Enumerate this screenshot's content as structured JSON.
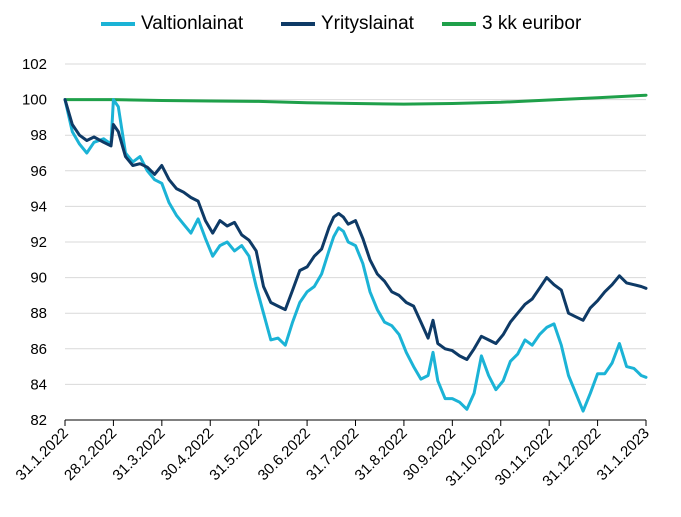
{
  "chart_data": {
    "type": "line",
    "title": "",
    "xlabel": "",
    "ylabel": "",
    "ylim": [
      82,
      102
    ],
    "y_ticks": [
      "82",
      "84",
      "86",
      "88",
      "90",
      "92",
      "94",
      "96",
      "98",
      "100",
      "102"
    ],
    "x_ticks": [
      "31.1.2022",
      "28.2.2022",
      "31.3.2022",
      "30.4.2022",
      "31.5.2022",
      "30.6.2022",
      "31.7.2022",
      "31.8.2022",
      "30.9.2022",
      "31.10.2022",
      "30.11.2022",
      "31.12.2022",
      "31.1.2023"
    ],
    "grid": "horizontal",
    "legend_position": "top",
    "series": [
      {
        "name": "Valtionlainat",
        "color": "#1BB3D6",
        "values": [
          [
            0,
            100
          ],
          [
            0.15,
            98.2
          ],
          [
            0.3,
            97.5
          ],
          [
            0.45,
            97.0
          ],
          [
            0.6,
            97.6
          ],
          [
            0.8,
            97.8
          ],
          [
            0.95,
            97.5
          ],
          [
            1.0,
            100.0
          ],
          [
            1.1,
            99.6
          ],
          [
            1.25,
            97.0
          ],
          [
            1.4,
            96.5
          ],
          [
            1.55,
            96.8
          ],
          [
            1.7,
            96.0
          ],
          [
            1.85,
            95.5
          ],
          [
            2.0,
            95.3
          ],
          [
            2.15,
            94.2
          ],
          [
            2.3,
            93.5
          ],
          [
            2.45,
            93.0
          ],
          [
            2.6,
            92.5
          ],
          [
            2.75,
            93.3
          ],
          [
            2.9,
            92.2
          ],
          [
            3.05,
            91.2
          ],
          [
            3.2,
            91.8
          ],
          [
            3.35,
            92.0
          ],
          [
            3.5,
            91.5
          ],
          [
            3.65,
            91.8
          ],
          [
            3.8,
            91.2
          ],
          [
            3.95,
            89.5
          ],
          [
            4.1,
            88.0
          ],
          [
            4.25,
            86.5
          ],
          [
            4.4,
            86.6
          ],
          [
            4.55,
            86.2
          ],
          [
            4.7,
            87.5
          ],
          [
            4.85,
            88.6
          ],
          [
            5.0,
            89.2
          ],
          [
            5.15,
            89.5
          ],
          [
            5.3,
            90.2
          ],
          [
            5.45,
            91.5
          ],
          [
            5.55,
            92.3
          ],
          [
            5.65,
            92.8
          ],
          [
            5.75,
            92.6
          ],
          [
            5.85,
            92.0
          ],
          [
            6.0,
            91.8
          ],
          [
            6.15,
            90.8
          ],
          [
            6.3,
            89.2
          ],
          [
            6.45,
            88.2
          ],
          [
            6.6,
            87.5
          ],
          [
            6.75,
            87.3
          ],
          [
            6.9,
            86.8
          ],
          [
            7.05,
            85.8
          ],
          [
            7.2,
            85.0
          ],
          [
            7.35,
            84.3
          ],
          [
            7.5,
            84.5
          ],
          [
            7.6,
            85.8
          ],
          [
            7.7,
            84.2
          ],
          [
            7.85,
            83.2
          ],
          [
            8.0,
            83.2
          ],
          [
            8.15,
            83.0
          ],
          [
            8.3,
            82.6
          ],
          [
            8.45,
            83.5
          ],
          [
            8.6,
            85.6
          ],
          [
            8.75,
            84.5
          ],
          [
            8.9,
            83.7
          ],
          [
            9.05,
            84.2
          ],
          [
            9.2,
            85.3
          ],
          [
            9.35,
            85.7
          ],
          [
            9.5,
            86.5
          ],
          [
            9.65,
            86.2
          ],
          [
            9.8,
            86.8
          ],
          [
            9.95,
            87.2
          ],
          [
            10.1,
            87.4
          ],
          [
            10.25,
            86.2
          ],
          [
            10.4,
            84.5
          ],
          [
            10.55,
            83.5
          ],
          [
            10.7,
            82.5
          ],
          [
            10.85,
            83.5
          ],
          [
            11.0,
            84.6
          ],
          [
            11.15,
            84.6
          ],
          [
            11.3,
            85.2
          ],
          [
            11.45,
            86.3
          ],
          [
            11.6,
            85.0
          ],
          [
            11.75,
            84.9
          ],
          [
            11.9,
            84.5
          ],
          [
            12.0,
            84.4
          ]
        ]
      },
      {
        "name": "Yrityslainat",
        "color": "#0E3A66",
        "values": [
          [
            0,
            100
          ],
          [
            0.15,
            98.6
          ],
          [
            0.3,
            98.0
          ],
          [
            0.45,
            97.7
          ],
          [
            0.6,
            97.9
          ],
          [
            0.8,
            97.6
          ],
          [
            0.95,
            97.4
          ],
          [
            1.0,
            98.6
          ],
          [
            1.1,
            98.2
          ],
          [
            1.25,
            96.8
          ],
          [
            1.4,
            96.3
          ],
          [
            1.55,
            96.4
          ],
          [
            1.7,
            96.2
          ],
          [
            1.85,
            95.8
          ],
          [
            2.0,
            96.3
          ],
          [
            2.15,
            95.5
          ],
          [
            2.3,
            95.0
          ],
          [
            2.45,
            94.8
          ],
          [
            2.6,
            94.5
          ],
          [
            2.75,
            94.3
          ],
          [
            2.9,
            93.2
          ],
          [
            3.05,
            92.5
          ],
          [
            3.2,
            93.2
          ],
          [
            3.35,
            92.9
          ],
          [
            3.5,
            93.1
          ],
          [
            3.65,
            92.4
          ],
          [
            3.8,
            92.1
          ],
          [
            3.95,
            91.5
          ],
          [
            4.1,
            89.5
          ],
          [
            4.25,
            88.6
          ],
          [
            4.4,
            88.4
          ],
          [
            4.55,
            88.2
          ],
          [
            4.7,
            89.3
          ],
          [
            4.85,
            90.4
          ],
          [
            5.0,
            90.6
          ],
          [
            5.15,
            91.2
          ],
          [
            5.3,
            91.6
          ],
          [
            5.45,
            92.8
          ],
          [
            5.55,
            93.4
          ],
          [
            5.65,
            93.6
          ],
          [
            5.75,
            93.4
          ],
          [
            5.85,
            93.0
          ],
          [
            6.0,
            93.2
          ],
          [
            6.15,
            92.2
          ],
          [
            6.3,
            91.0
          ],
          [
            6.45,
            90.2
          ],
          [
            6.6,
            89.8
          ],
          [
            6.75,
            89.2
          ],
          [
            6.9,
            89.0
          ],
          [
            7.05,
            88.6
          ],
          [
            7.2,
            88.4
          ],
          [
            7.35,
            87.5
          ],
          [
            7.5,
            86.6
          ],
          [
            7.6,
            87.6
          ],
          [
            7.7,
            86.3
          ],
          [
            7.85,
            86.0
          ],
          [
            8.0,
            85.9
          ],
          [
            8.15,
            85.6
          ],
          [
            8.3,
            85.4
          ],
          [
            8.45,
            86.0
          ],
          [
            8.6,
            86.7
          ],
          [
            8.75,
            86.5
          ],
          [
            8.9,
            86.3
          ],
          [
            9.05,
            86.8
          ],
          [
            9.2,
            87.5
          ],
          [
            9.35,
            88.0
          ],
          [
            9.5,
            88.5
          ],
          [
            9.65,
            88.8
          ],
          [
            9.8,
            89.4
          ],
          [
            9.95,
            90.0
          ],
          [
            10.1,
            89.6
          ],
          [
            10.25,
            89.3
          ],
          [
            10.4,
            88.0
          ],
          [
            10.55,
            87.8
          ],
          [
            10.7,
            87.6
          ],
          [
            10.85,
            88.3
          ],
          [
            11.0,
            88.7
          ],
          [
            11.15,
            89.2
          ],
          [
            11.3,
            89.6
          ],
          [
            11.45,
            90.1
          ],
          [
            11.6,
            89.7
          ],
          [
            11.75,
            89.6
          ],
          [
            11.9,
            89.5
          ],
          [
            12.0,
            89.4
          ]
        ]
      },
      {
        "name": "3 kk euribor",
        "color": "#1FA04A",
        "values": [
          [
            0,
            100
          ],
          [
            1,
            100
          ],
          [
            2,
            99.95
          ],
          [
            3,
            99.92
          ],
          [
            4,
            99.9
          ],
          [
            5,
            99.82
          ],
          [
            6,
            99.78
          ],
          [
            7,
            99.75
          ],
          [
            8,
            99.78
          ],
          [
            9,
            99.85
          ],
          [
            10,
            99.98
          ],
          [
            11,
            100.1
          ],
          [
            12,
            100.25
          ]
        ]
      }
    ]
  }
}
